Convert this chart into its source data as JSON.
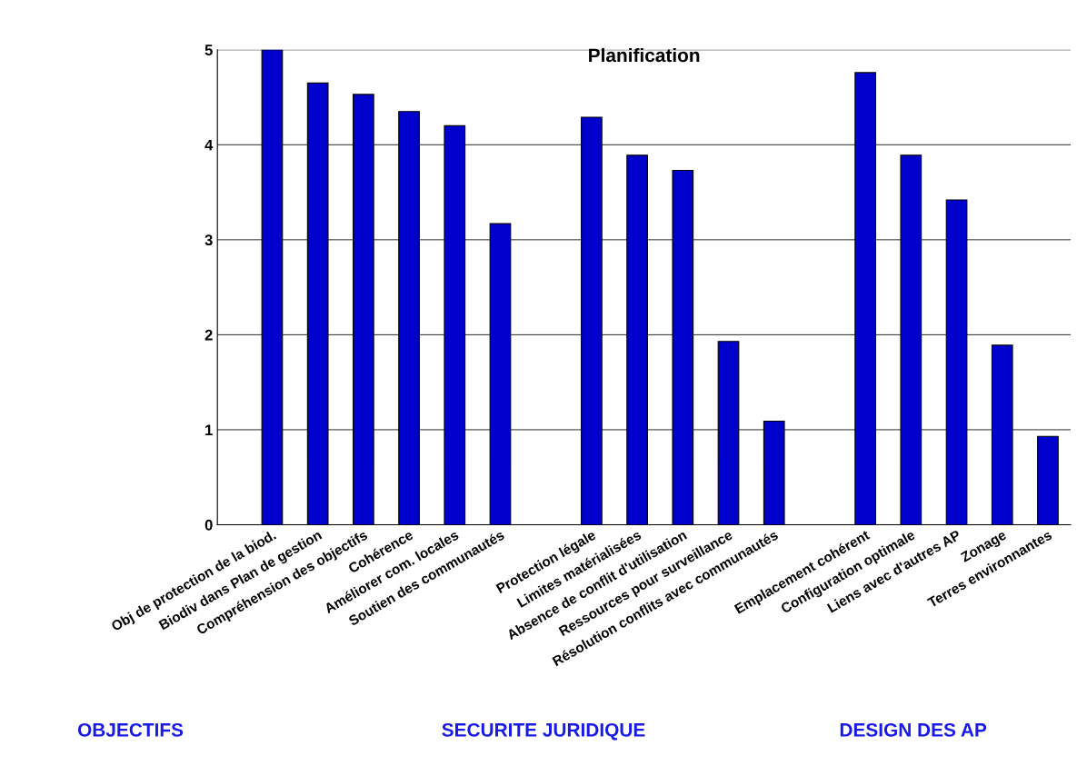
{
  "chart_data": {
    "type": "bar",
    "title": "Planification",
    "categories": [
      "Obj de protection de la biod.",
      "Biodiv dans Plan de gestion",
      "Compréhension des objectifs",
      "Cohérence",
      "Améliorer com. locales",
      "Soutien des communautés",
      null,
      "Protection légale",
      "Limites matérialisées",
      "Absence de conflit d'utilisation",
      "Ressources pour surveillance",
      "Résolution conflits avec communautés",
      null,
      "Emplacement cohérent",
      "Configuration optimale",
      "Liens avec d'autres AP",
      "Zonage",
      "Terres environnantes"
    ],
    "values": [
      5.0,
      4.65,
      4.53,
      4.35,
      4.2,
      3.17,
      null,
      4.29,
      3.89,
      3.73,
      1.93,
      1.09,
      null,
      4.76,
      3.89,
      3.42,
      1.89,
      0.93
    ],
    "color": "#0000cc",
    "ylim": [
      0,
      5
    ],
    "yticks": [
      0,
      1,
      2,
      3,
      4,
      5
    ],
    "grid": "y",
    "annotations": [
      "OBJECTIFS",
      "SECURITE JURIDIQUE",
      "DESIGN DES AP"
    ]
  }
}
